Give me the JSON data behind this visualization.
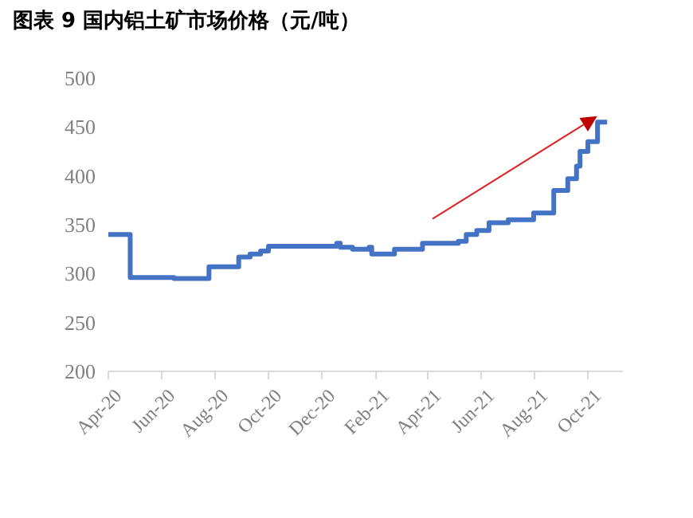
{
  "chart_data": {
    "type": "step",
    "title": "图表 9  国内铝土矿市场价格（元/吨）",
    "x": [
      "2020-04-01",
      "2020-04-26",
      "2020-06-15",
      "2020-07-25",
      "2020-08-28",
      "2020-09-10",
      "2020-09-22",
      "2020-10-01",
      "2020-12-18",
      "2020-12-22",
      "2021-01-05",
      "2021-01-24",
      "2021-01-27",
      "2021-02-22",
      "2021-03-26",
      "2021-05-06",
      "2021-05-15",
      "2021-05-27",
      "2021-06-10",
      "2021-07-02",
      "2021-07-31",
      "2021-08-23",
      "2021-09-08",
      "2021-09-18",
      "2021-09-22",
      "2021-10-01",
      "2021-10-12",
      "2021-10-23"
    ],
    "series": [
      {
        "color": "#4472c4",
        "values": [
          340,
          296,
          295,
          307,
          317,
          320,
          323,
          328,
          331,
          327,
          325,
          327,
          320,
          325,
          331,
          333,
          340,
          344,
          352,
          355,
          362,
          385,
          397,
          410,
          425,
          435,
          455,
          455
        ]
      }
    ],
    "xlim": [
      "2020-04-01",
      "2021-11-10"
    ],
    "xticks": [
      {
        "value": "2020-04-01",
        "label": "Apr-20"
      },
      {
        "value": "2020-06-01",
        "label": "Jun-20"
      },
      {
        "value": "2020-08-01",
        "label": "Aug-20"
      },
      {
        "value": "2020-10-01",
        "label": "Oct-20"
      },
      {
        "value": "2020-12-01",
        "label": "Dec-20"
      },
      {
        "value": "2021-02-01",
        "label": "Feb-21"
      },
      {
        "value": "2021-04-01",
        "label": "Apr-21"
      },
      {
        "value": "2021-06-01",
        "label": "Jun-21"
      },
      {
        "value": "2021-08-01",
        "label": "Aug-21"
      },
      {
        "value": "2021-10-01",
        "label": "Oct-21"
      }
    ],
    "ylim": [
      200,
      500
    ],
    "yticks": [
      200,
      250,
      300,
      350,
      400,
      450,
      500
    ],
    "grid": false
  }
}
